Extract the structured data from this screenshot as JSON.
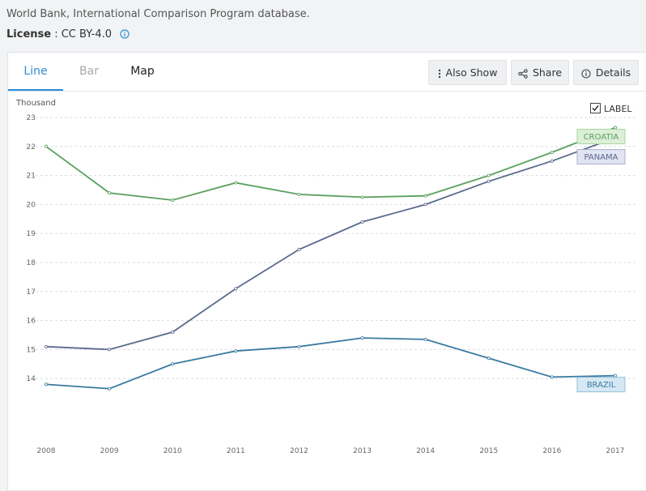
{
  "source": "World Bank, International Comparison Program database.",
  "license": {
    "label": "License",
    "sep": " : ",
    "value": "CC BY-4.0"
  },
  "tabs": [
    {
      "label": "Line"
    },
    {
      "label": "Bar"
    },
    {
      "label": "Map"
    }
  ],
  "buttons": {
    "also_show": "Also Show",
    "share": "Share",
    "details": "Details"
  },
  "label_toggle": "LABEL",
  "chart_data": {
    "type": "line",
    "ylabel": "Thousand",
    "x": [
      2008,
      2009,
      2010,
      2011,
      2012,
      2013,
      2014,
      2015,
      2016,
      2017
    ],
    "ylim": [
      13,
      23
    ],
    "yticks": [
      14,
      15,
      16,
      17,
      18,
      19,
      20,
      21,
      22,
      23
    ],
    "grid": true,
    "series": [
      {
        "name": "CROATIA",
        "color": "#5aa05e",
        "label_bg": "#dcefd8",
        "label_border": "#a9d4a2",
        "values": [
          22.0,
          20.4,
          20.15,
          20.75,
          20.35,
          20.25,
          20.3,
          21.0,
          21.8,
          22.65
        ]
      },
      {
        "name": "PANAMA",
        "color": "#5a6a8e",
        "label_bg": "#e1e4f1",
        "label_border": "#a9b1d2",
        "values": [
          15.1,
          15.0,
          15.6,
          17.1,
          18.45,
          19.4,
          20.0,
          20.8,
          21.5,
          22.3
        ]
      },
      {
        "name": "BRAZIL",
        "color": "#3a7aa0",
        "label_bg": "#d6e8f3",
        "label_border": "#93bfd8",
        "values": [
          13.8,
          13.65,
          14.5,
          14.95,
          15.1,
          15.4,
          15.35,
          14.7,
          14.05,
          14.1
        ]
      }
    ]
  }
}
